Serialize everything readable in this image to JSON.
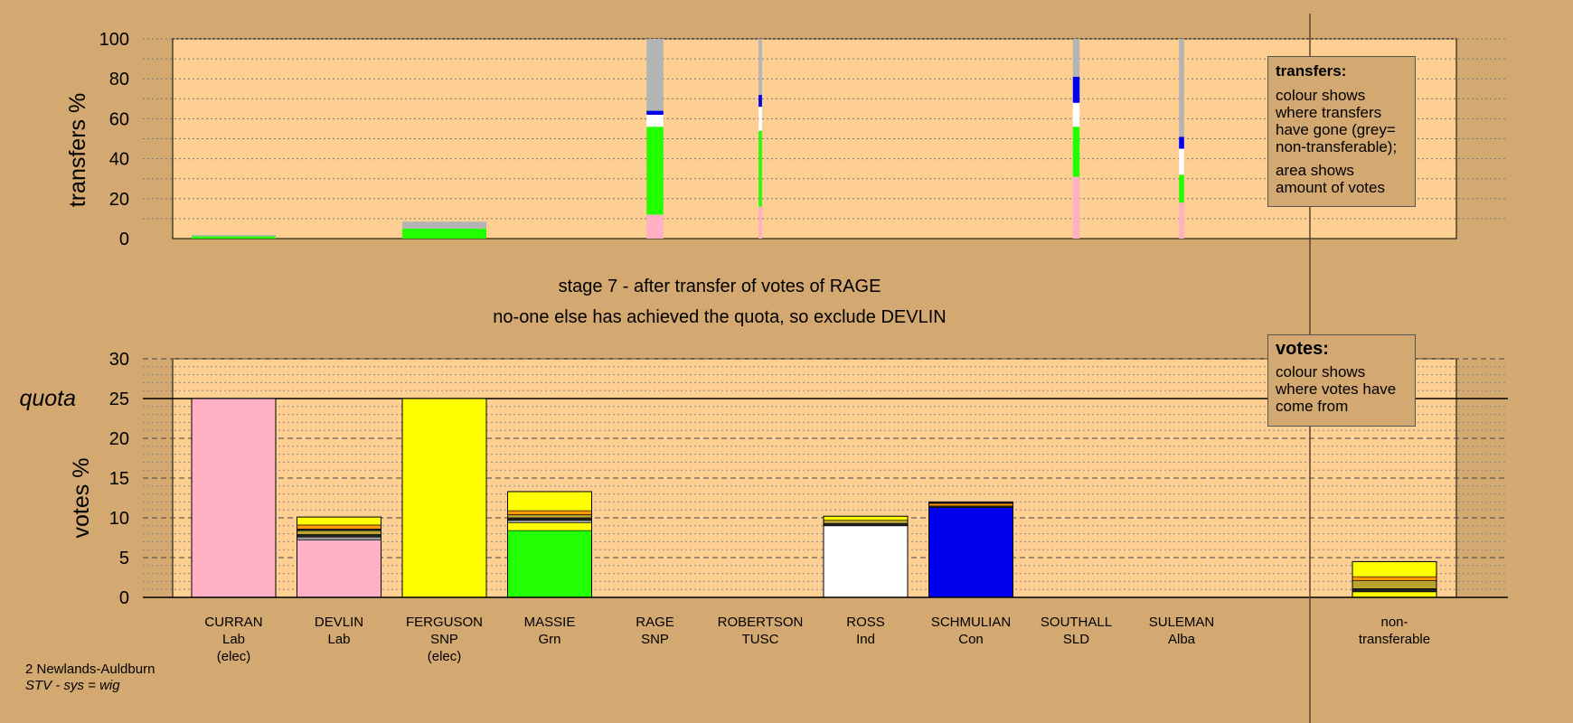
{
  "colors": {
    "background": "#d3a871",
    "panel": "#fecf92",
    "Lab": "#ffb0c4",
    "SNP": "#ffff00",
    "Grn": "#22ff00",
    "Ind": "#ffffff",
    "Con": "#0000ee",
    "nontransferable": "#b4b4b4",
    "minor_orange": "#ff9900",
    "minor_dark": "#222222",
    "minor_olive": "#b9a430",
    "minor_grey": "#999999"
  },
  "stage_text": {
    "line1": "stage 7 - after transfer of votes of RAGE",
    "line2": "no-one else has achieved the quota, so exclude DEVLIN"
  },
  "legend_transfers": {
    "title": "transfers:",
    "text1": "colour shows where transfers have gone (grey= non-transferable);",
    "text2": "area shows amount of votes"
  },
  "legend_votes": {
    "title": "votes:",
    "text": "colour shows where votes have come from"
  },
  "footer": {
    "ward": "2 Newlands-Auldburn",
    "system": "STV - sys = wig"
  },
  "chart_data": [
    {
      "type": "bar",
      "name": "transfers",
      "ylabel": "transfers %",
      "ylim": [
        0,
        100
      ],
      "yticks": [
        0,
        20,
        40,
        60,
        80,
        100
      ],
      "grid": "dotted every 10",
      "categories": [
        "CURRAN",
        "DEVLIN",
        "FERGUSON",
        "MASSIE",
        "RAGE",
        "ROBERTSON",
        "ROSS",
        "SCHMULIAN",
        "SOUTHALL",
        "SULEMAN"
      ],
      "bars": [
        {
          "candidate": "CURRAN",
          "width_share": 1.0,
          "segments": [
            {
              "color": "Grn",
              "value": 1.2
            },
            {
              "color": "nontransferable",
              "value": 0.6
            }
          ]
        },
        {
          "candidate": "FERGUSON",
          "width_share": 1.0,
          "segments": [
            {
              "color": "Grn",
              "value": 5
            },
            {
              "color": "nontransferable",
              "value": 3.5
            }
          ]
        },
        {
          "candidate": "RAGE",
          "width_share": 0.2,
          "segments": [
            {
              "color": "Lab",
              "value": 12
            },
            {
              "color": "Grn",
              "value": 44
            },
            {
              "color": "Ind",
              "value": 6
            },
            {
              "color": "Con",
              "value": 2
            },
            {
              "color": "nontransferable",
              "value": 36
            }
          ]
        },
        {
          "candidate": "ROBERTSON",
          "width_share": 0.04,
          "segments": [
            {
              "color": "Lab",
              "value": 16
            },
            {
              "color": "Grn",
              "value": 38
            },
            {
              "color": "Ind",
              "value": 12
            },
            {
              "color": "Con",
              "value": 6
            },
            {
              "color": "nontransferable",
              "value": 28
            }
          ]
        },
        {
          "candidate": "SOUTHALL",
          "width_share": 0.08,
          "segments": [
            {
              "color": "Lab",
              "value": 31
            },
            {
              "color": "Grn",
              "value": 25
            },
            {
              "color": "Ind",
              "value": 12
            },
            {
              "color": "Con",
              "value": 13
            },
            {
              "color": "nontransferable",
              "value": 19
            }
          ]
        },
        {
          "candidate": "SULEMAN",
          "width_share": 0.06,
          "segments": [
            {
              "color": "Lab",
              "value": 18
            },
            {
              "color": "Grn",
              "value": 14
            },
            {
              "color": "Ind",
              "value": 13
            },
            {
              "color": "Con",
              "value": 6
            },
            {
              "color": "nontransferable",
              "value": 49
            }
          ]
        }
      ]
    },
    {
      "type": "bar",
      "name": "votes",
      "ylabel": "votes %",
      "ylim": [
        0,
        30
      ],
      "yticks": [
        0,
        5,
        10,
        15,
        20,
        25,
        30
      ],
      "quota": 25,
      "quota_label": "quota",
      "grid": "dashed every 5, dotted every 1",
      "candidates": [
        {
          "name": "CURRAN",
          "party": "Lab",
          "status": "(elec)",
          "segments": [
            {
              "color": "Lab",
              "value": 25
            }
          ]
        },
        {
          "name": "DEVLIN",
          "party": "Lab",
          "status": "",
          "segments": [
            {
              "color": "Lab",
              "value": 7.2
            },
            {
              "color": "minor_grey",
              "value": 0.4
            },
            {
              "color": "minor_dark",
              "value": 0.3
            },
            {
              "color": "minor_olive",
              "value": 0.5
            },
            {
              "color": "minor_dark",
              "value": 0.2
            },
            {
              "color": "minor_orange",
              "value": 0.5
            },
            {
              "color": "SNP",
              "value": 1.0
            }
          ]
        },
        {
          "name": "FERGUSON",
          "party": "SNP",
          "status": "(elec)",
          "segments": [
            {
              "color": "SNP",
              "value": 25
            }
          ]
        },
        {
          "name": "MASSIE",
          "party": "Grn",
          "status": "",
          "segments": [
            {
              "color": "Grn",
              "value": 8.4
            },
            {
              "color": "SNP",
              "value": 1.0
            },
            {
              "color": "minor_grey",
              "value": 0.3
            },
            {
              "color": "minor_dark",
              "value": 0.3
            },
            {
              "color": "minor_olive",
              "value": 0.4
            },
            {
              "color": "minor_orange",
              "value": 0.5
            },
            {
              "color": "SNP",
              "value": 2.4
            }
          ]
        },
        {
          "name": "RAGE",
          "party": "SNP",
          "status": "",
          "segments": []
        },
        {
          "name": "ROBERTSON",
          "party": "TUSC",
          "status": "",
          "segments": []
        },
        {
          "name": "ROSS",
          "party": "Ind",
          "status": "",
          "segments": [
            {
              "color": "Ind",
              "value": 9.0
            },
            {
              "color": "minor_dark",
              "value": 0.3
            },
            {
              "color": "minor_olive",
              "value": 0.4
            },
            {
              "color": "SNP",
              "value": 0.5
            }
          ]
        },
        {
          "name": "SCHMULIAN",
          "party": "Con",
          "status": "",
          "segments": [
            {
              "color": "Con",
              "value": 11.3
            },
            {
              "color": "minor_dark",
              "value": 0.2
            },
            {
              "color": "minor_orange",
              "value": 0.3
            },
            {
              "color": "minor_dark",
              "value": 0.2
            }
          ]
        },
        {
          "name": "SOUTHALL",
          "party": "SLD",
          "status": "",
          "segments": []
        },
        {
          "name": "SULEMAN",
          "party": "Alba",
          "status": "",
          "segments": []
        }
      ],
      "nontransferable": {
        "label1": "non-",
        "label2": "transferable",
        "segments": [
          {
            "color": "SNP",
            "value": 0.7
          },
          {
            "color": "minor_dark",
            "value": 0.4
          },
          {
            "color": "minor_olive",
            "value": 1.0
          },
          {
            "color": "minor_orange",
            "value": 0.5
          },
          {
            "color": "SNP",
            "value": 1.9
          }
        ]
      }
    }
  ]
}
